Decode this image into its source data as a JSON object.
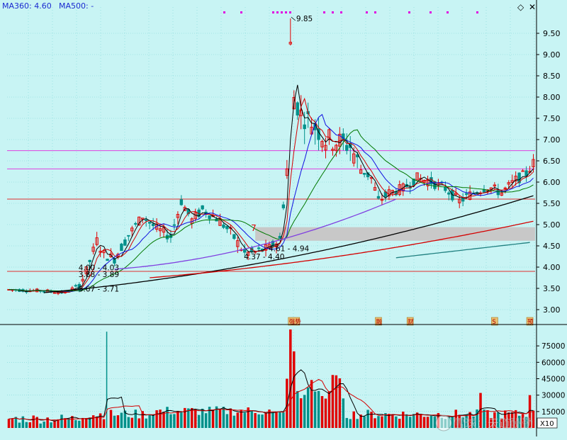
{
  "header": {
    "ma360_label": "MA360: 4.60",
    "ma500_label": "MA500: -",
    "icons": [
      "diamond-icon",
      "close-icon"
    ]
  },
  "colors": {
    "background": "#c8f4f4",
    "grid": "#7dd6d6",
    "up": "#e00000",
    "down": "#00908a",
    "ma_black": "#000000",
    "ma_red": "#d40000",
    "ma_blue": "#1010e0",
    "ma_green": "#007800",
    "ma_purple": "#8040e0",
    "hline_magenta": "#e040e0",
    "hline_red": "#e03030",
    "gray_band": "#c8c8c8",
    "header_blue": "#1a2ad0",
    "marker_magenta": "#e000e0"
  },
  "chart_data": [
    {
      "type": "candlestick",
      "ylim": [
        2.75,
        9.95
      ],
      "yticks": [
        "3.00",
        "3.50",
        "4.00",
        "4.50",
        "5.00",
        "5.50",
        "6.00",
        "6.50",
        "7.00",
        "7.50",
        "8.00",
        "8.50",
        "9.00",
        "9.50"
      ],
      "grid": true,
      "n_bars": 150,
      "price_annotations": [
        {
          "text": "9.85",
          "bar": 80,
          "price": 9.85
        },
        {
          "text": "4.61 - 4.94",
          "bar": 75,
          "price": 4.44
        },
        {
          "text": "4.37 - 4.40",
          "bar": 68,
          "price": 4.25
        },
        {
          "text": "4.00 - 4.03",
          "bar": 21,
          "price": 3.99
        },
        {
          "text": "3.88 - 3.89",
          "bar": 21,
          "price": 3.83
        },
        {
          "text": "3.67 - 3.71",
          "bar": 21,
          "price": 3.49
        },
        {
          "text": "7",
          "bar": 70,
          "price": 4.92
        }
      ],
      "horizontal_lines": [
        {
          "price": 6.74,
          "color": "magenta"
        },
        {
          "price": 6.31,
          "color": "magenta"
        },
        {
          "price": 5.6,
          "color": "red"
        },
        {
          "price": 3.9,
          "color": "red"
        }
      ],
      "gray_band": {
        "from_bar": 70,
        "to_bar": 150,
        "low": 4.62,
        "high": 4.94
      },
      "event_markers": [
        {
          "label": "强势",
          "bar": 81
        },
        {
          "label": "融",
          "bar": 105
        },
        {
          "label": "财",
          "bar": 114
        },
        {
          "label": "S",
          "bar": 138
        },
        {
          "label": "预",
          "bar": 148
        }
      ],
      "moving_averages": [
        "MA360",
        "MA500"
      ]
    },
    {
      "type": "bar",
      "series_name": "volume",
      "ylim": [
        0,
        90000
      ],
      "yticks": [
        "15000",
        "30000",
        "45000",
        "60000",
        "75000"
      ],
      "unit_label": "X10"
    }
  ],
  "watermark": "雪球：天道酬勤"
}
